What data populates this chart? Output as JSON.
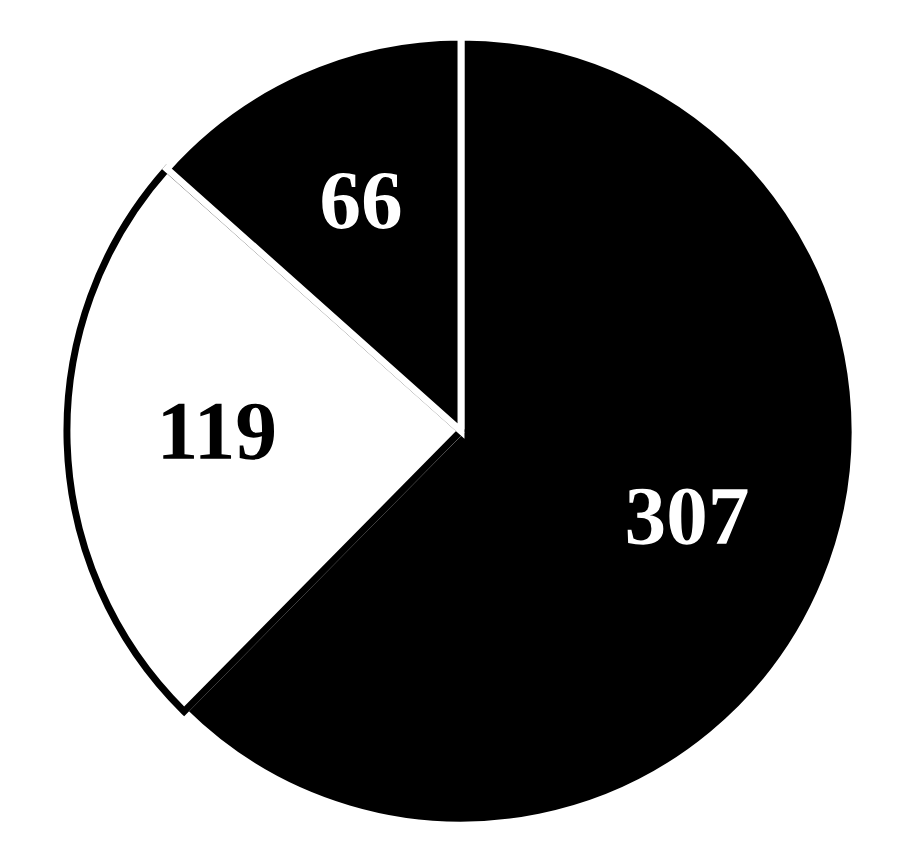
{
  "chart_data": {
    "type": "pie",
    "categories": [
      null,
      null,
      null
    ],
    "values": [
      307,
      119,
      66
    ],
    "colors": [
      "#000000",
      "#ffffff",
      "#000000"
    ],
    "data_labels": true
  }
}
